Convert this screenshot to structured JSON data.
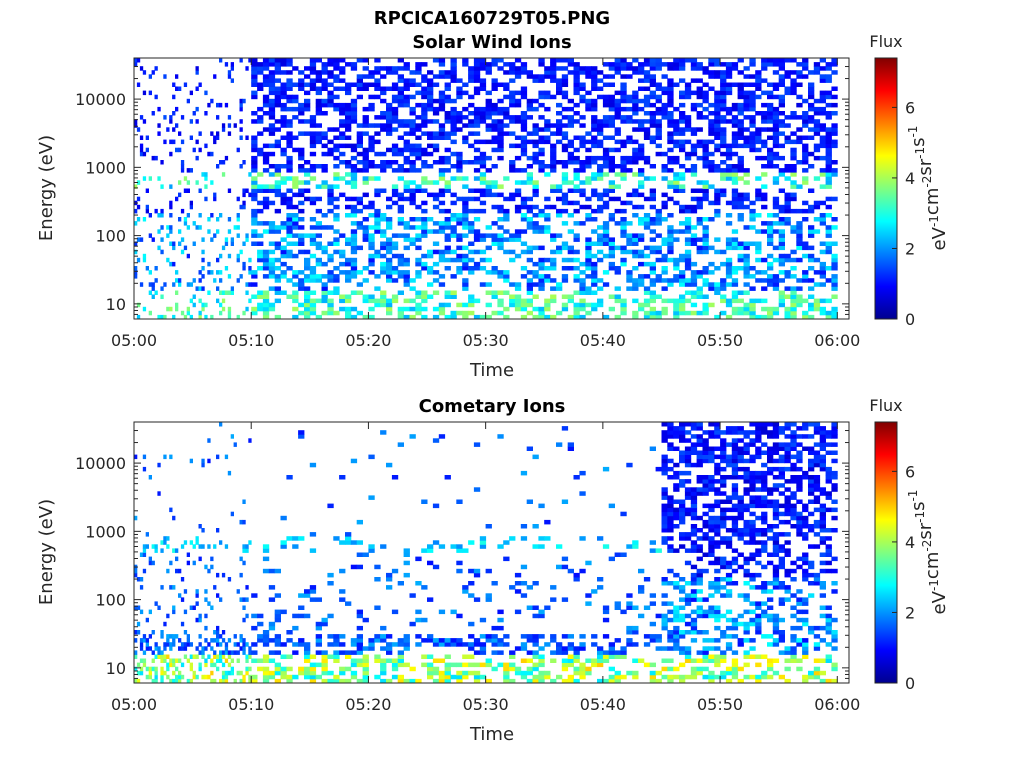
{
  "figure_title": "RPCICA160729T05.PNG",
  "colorbar": {
    "title": "Flux",
    "label": "eV-1cm-2sr-1s-1",
    "label_base": [
      "eV",
      "cm",
      "sr",
      "s"
    ],
    "label_exp": [
      "-1",
      "-2",
      "-1",
      "-1"
    ],
    "ticks": [
      "0",
      "2",
      "4",
      "6"
    ],
    "range": [
      0,
      7.4
    ],
    "colormap": "jet"
  },
  "chart_data": [
    {
      "type": "heatmap",
      "title": "Solar Wind Ions",
      "xlabel": "Time",
      "ylabel": "Energy (eV)",
      "x_ticks": [
        "05:00",
        "05:10",
        "05:20",
        "05:30",
        "05:40",
        "05:50",
        "06:00"
      ],
      "y_ticks": [
        "10",
        "100",
        "1000",
        "10000"
      ],
      "y_scale": "log",
      "ylim": [
        6,
        40000
      ],
      "xlim": [
        "05:00",
        "06:01"
      ],
      "colorbar_label": "Flux",
      "description_of_values": "flux in eV-1cm-2sr-1s-1 vs time and energy; sparse speckles 05:00-05:10, dense coverage after 05:10, band near 600 eV (~3.5), low-energy column patches ~2.5-3.5"
    },
    {
      "type": "heatmap",
      "title": "Cometary Ions",
      "xlabel": "Time",
      "ylabel": "Energy (eV)",
      "x_ticks": [
        "05:00",
        "05:10",
        "05:20",
        "05:30",
        "05:40",
        "05:50",
        "06:00"
      ],
      "y_ticks": [
        "10",
        "100",
        "1000",
        "10000"
      ],
      "y_scale": "log",
      "ylim": [
        6,
        40000
      ],
      "xlim": [
        "05:00",
        "06:01"
      ],
      "colorbar_label": "Flux",
      "description_of_values": "sparse coverage before 05:45 with band near 600 eV, strong low-energy columns near 10 eV (~3-5), dense coverage from 05:45 to 06:00"
    }
  ]
}
